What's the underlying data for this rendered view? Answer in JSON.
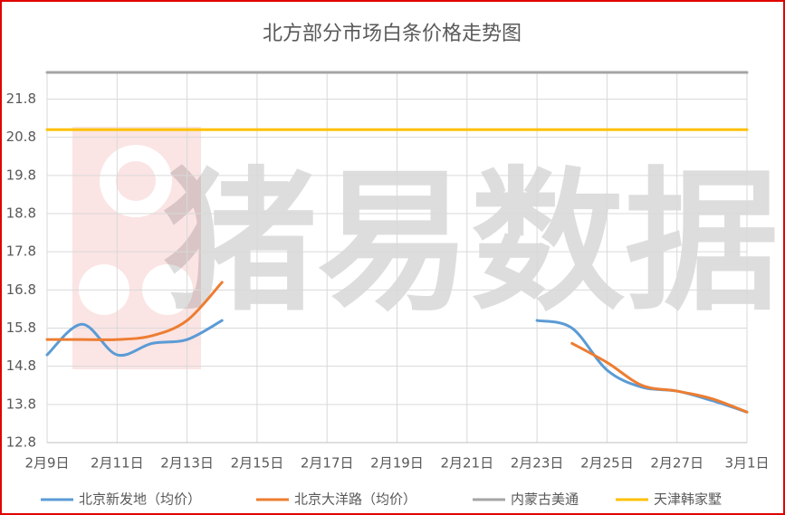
{
  "chart_data": {
    "type": "line",
    "title": "北方部分市场白条价格走势图",
    "watermark": "猪易数据",
    "categories": [
      "2月9日",
      null,
      "2月11日",
      null,
      "2月13日",
      null,
      "2月15日",
      null,
      "2月17日",
      null,
      "2月19日",
      null,
      "2月21日",
      null,
      "2月23日",
      null,
      "2月25日",
      null,
      "2月27日",
      null,
      "3月1日"
    ],
    "series": [
      {
        "name": "北京新发地（均价）",
        "color": "#5b9bd5",
        "values": [
          15.1,
          15.9,
          15.1,
          15.4,
          15.5,
          16.0,
          null,
          null,
          null,
          null,
          null,
          null,
          null,
          null,
          16.0,
          15.8,
          14.7,
          14.25,
          14.15,
          13.9,
          13.6
        ]
      },
      {
        "name": "北京大洋路（均价）",
        "color": "#ed7d31",
        "values": [
          15.5,
          15.5,
          15.5,
          15.6,
          16.0,
          17.0,
          null,
          null,
          null,
          null,
          null,
          null,
          null,
          null,
          null,
          15.4,
          14.9,
          14.3,
          14.15,
          13.95,
          13.6
        ]
      },
      {
        "name": "内蒙古美通",
        "color": "#a5a5a5",
        "values": [
          22.5,
          22.5,
          22.5,
          22.5,
          22.5,
          22.5,
          22.5,
          22.5,
          22.5,
          22.5,
          22.5,
          22.5,
          22.5,
          22.5,
          22.5,
          22.5,
          22.5,
          22.5,
          22.5,
          22.5,
          22.5
        ]
      },
      {
        "name": "天津韩家墅",
        "color": "#ffc000",
        "values": [
          21.0,
          21.0,
          21.0,
          21.0,
          21.0,
          21.0,
          21.0,
          21.0,
          21.0,
          21.0,
          21.0,
          21.0,
          21.0,
          21.0,
          21.0,
          21.0,
          21.0,
          21.0,
          21.0,
          21.0,
          21.0
        ]
      }
    ],
    "ylim": [
      12.8,
      22.5
    ],
    "yticks": [
      12.8,
      13.8,
      14.8,
      15.8,
      16.8,
      17.8,
      18.8,
      19.8,
      20.8,
      21.8
    ],
    "grid": true,
    "legend": "bottom"
  }
}
